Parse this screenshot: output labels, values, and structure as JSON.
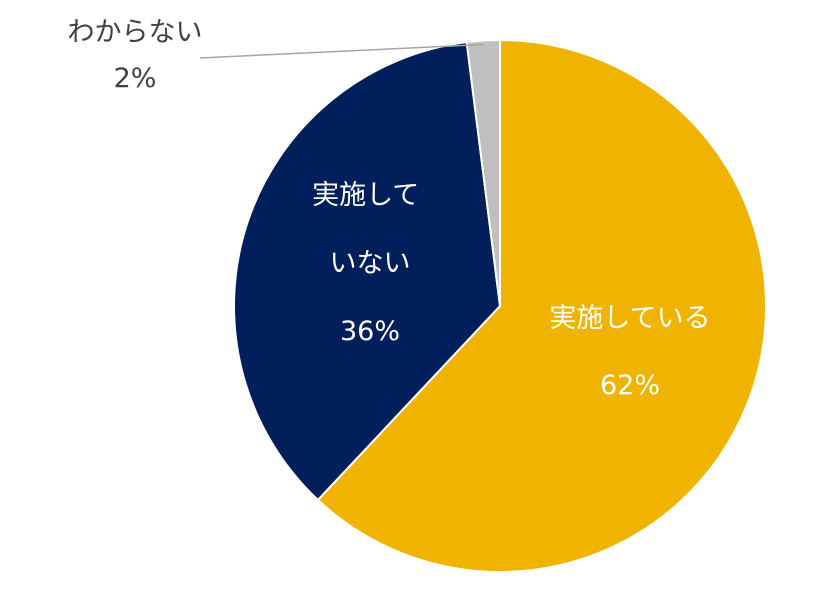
{
  "chart_data": {
    "type": "pie",
    "title": "",
    "slices": [
      {
        "label": "実施している",
        "label_lines": [
          "実施している"
        ],
        "value": 62,
        "value_text": "62%",
        "color": "#f0b400",
        "label_color": "#ffffff"
      },
      {
        "label": "実施していない",
        "label_lines": [
          "実施して",
          "いない"
        ],
        "value": 36,
        "value_text": "36%",
        "color": "#001f5b",
        "label_color": "#ffffff"
      },
      {
        "label": "わからない",
        "label_lines": [
          "わからない"
        ],
        "value": 2,
        "value_text": "2%",
        "color": "#bfbfbf",
        "label_color": "#404040"
      }
    ],
    "start_position": "12 o'clock",
    "direction": "clockwise",
    "legend": "none",
    "data_labels": "category and percentage"
  }
}
